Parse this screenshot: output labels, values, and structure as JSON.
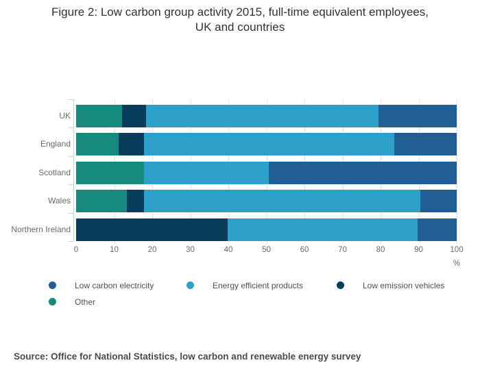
{
  "title": "Figure 2: Low carbon group activity 2015, full-time equivalent employees,\nUK and countries",
  "source": "Source: Office for National Statistics, low carbon and renewable energy survey",
  "legend": [
    {
      "label": "Low carbon electricity",
      "color": "#215e94"
    },
    {
      "label": "Energy efficient products",
      "color": "#2ca0c8"
    },
    {
      "label": "Low emission vehicles",
      "color": "#073d5a"
    },
    {
      "label": "Other",
      "color": "#168a7d"
    }
  ],
  "chart_data": {
    "type": "bar",
    "orientation": "horizontal",
    "stacked": true,
    "title": "Figure 2: Low carbon group activity 2015, full-time equivalent employees, UK and countries",
    "xlabel": "%",
    "ylabel": "",
    "xlim": [
      0,
      100
    ],
    "xticks": [
      0,
      10,
      20,
      30,
      40,
      50,
      60,
      70,
      80,
      90,
      100
    ],
    "grid": true,
    "legend_position": "bottom",
    "categories": [
      "UK",
      "England",
      "Scotland",
      "Wales",
      "Northern Ireland"
    ],
    "series": [
      {
        "name": "Other",
        "color": "#168a7d",
        "values": [
          12.0,
          11.2,
          17.8,
          13.3,
          0.0
        ]
      },
      {
        "name": "Low emission vehicles",
        "color": "#073d5a",
        "values": [
          6.4,
          6.6,
          0.0,
          4.5,
          39.8
        ]
      },
      {
        "name": "Energy efficient products",
        "color": "#2ca0c8",
        "values": [
          61.1,
          65.8,
          32.8,
          72.7,
          49.9
        ]
      },
      {
        "name": "Low carbon electricity",
        "color": "#215e94",
        "values": [
          20.5,
          16.4,
          49.4,
          9.5,
          10.3
        ]
      }
    ]
  }
}
